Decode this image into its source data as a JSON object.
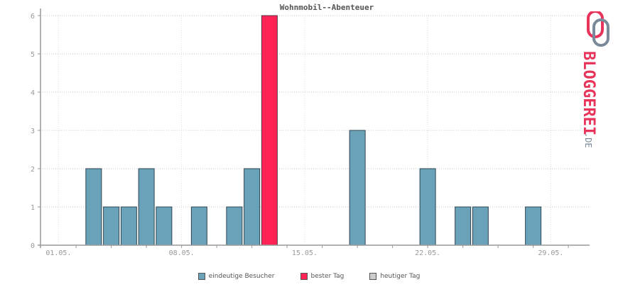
{
  "chart_data": {
    "type": "bar",
    "title": "Wohnmobil--Abenteuer",
    "xlabel": "",
    "ylabel": "",
    "ylim": [
      0,
      6
    ],
    "yticks": [
      0,
      1,
      2,
      3,
      4,
      5,
      6
    ],
    "day_count": 31,
    "x_tick_labels": [
      {
        "day": 1,
        "label": "01.05."
      },
      {
        "day": 8,
        "label": "08.05."
      },
      {
        "day": 15,
        "label": "15.05."
      },
      {
        "day": 22,
        "label": "22.05."
      },
      {
        "day": 29,
        "label": "29.05."
      }
    ],
    "categories": [
      "01.05.",
      "02.05.",
      "03.05.",
      "04.05.",
      "05.05.",
      "06.05.",
      "07.05.",
      "08.05.",
      "09.05.",
      "10.05.",
      "11.05.",
      "12.05.",
      "13.05.",
      "14.05.",
      "15.05.",
      "16.05.",
      "17.05.",
      "18.05.",
      "19.05.",
      "20.05.",
      "21.05.",
      "22.05.",
      "23.05.",
      "24.05.",
      "25.05.",
      "26.05.",
      "27.05.",
      "28.05.",
      "29.05.",
      "30.05.",
      "31.05."
    ],
    "series": [
      {
        "name": "eindeutige Besucher",
        "color": "#6aa3b9",
        "values": [
          0,
          0,
          2,
          1,
          1,
          2,
          1,
          0,
          1,
          0,
          1,
          2,
          6,
          0,
          0,
          0,
          0,
          3,
          0,
          0,
          0,
          2,
          0,
          1,
          1,
          0,
          0,
          1,
          0,
          0,
          0
        ]
      }
    ],
    "best_day_index": 12,
    "best_day_color": "#ff2255",
    "today_color": "#cccccc",
    "grid": true,
    "legend_position": "bottom",
    "legend": [
      {
        "label": "eindeutige Besucher",
        "color": "#6aa3b9"
      },
      {
        "label": "bester Tag",
        "color": "#ff2255"
      },
      {
        "label": "heutiger Tag",
        "color": "#cccccc"
      }
    ]
  },
  "logo": {
    "text": "BLOGGEREI",
    "suffix": ".DE"
  }
}
